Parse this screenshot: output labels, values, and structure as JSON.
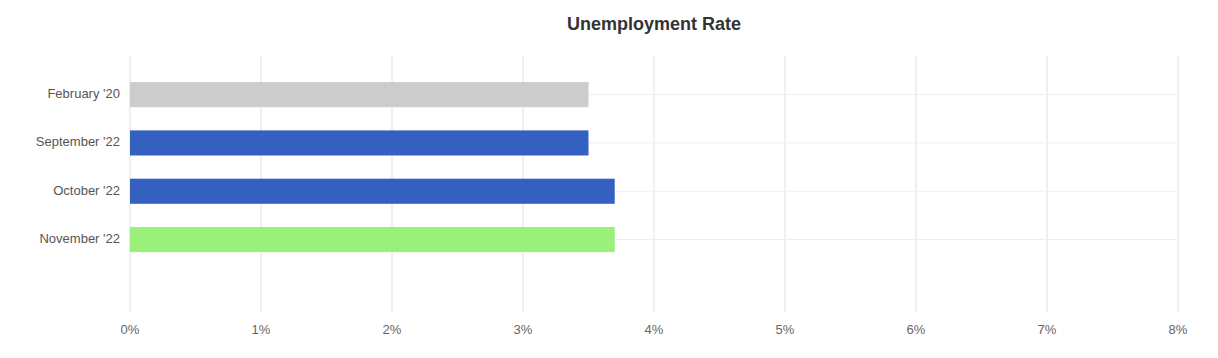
{
  "chart_data": {
    "type": "bar",
    "orientation": "horizontal",
    "title": "Unemployment Rate",
    "categories": [
      "February '20",
      "September '22",
      "October '22",
      "November '22"
    ],
    "values": [
      3.5,
      3.5,
      3.7,
      3.7
    ],
    "colors": [
      "#cccccc",
      "#3461c1",
      "#3461c1",
      "#99f07a"
    ],
    "xlim": [
      0,
      8
    ],
    "xticks": [
      {
        "value": 0,
        "label": "0%"
      },
      {
        "value": 1,
        "label": "1%"
      },
      {
        "value": 2,
        "label": "2%"
      },
      {
        "value": 3,
        "label": "3%"
      },
      {
        "value": 4,
        "label": "4%"
      },
      {
        "value": 5,
        "label": "5%"
      },
      {
        "value": 6,
        "label": "6%"
      },
      {
        "value": 7,
        "label": "7%"
      },
      {
        "value": 8,
        "label": "8%"
      }
    ],
    "grid": true
  }
}
